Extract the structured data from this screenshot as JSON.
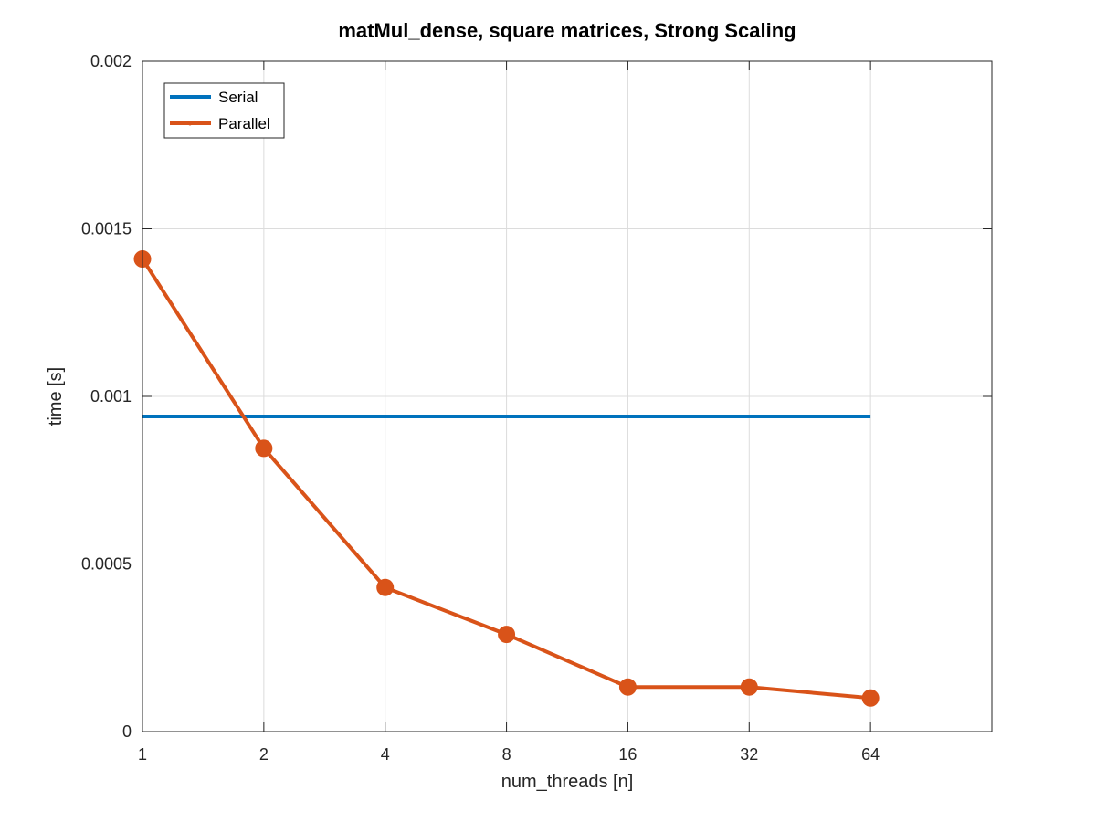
{
  "chart_data": {
    "type": "line",
    "title": "matMul_dense, square matrices, Strong Scaling",
    "xlabel": "num_threads [n]",
    "ylabel": "time [s]",
    "x_scale": "log2",
    "x": [
      1,
      2,
      4,
      8,
      16,
      32,
      64
    ],
    "xticks": [
      "1",
      "2",
      "4",
      "8",
      "16",
      "32",
      "64"
    ],
    "xlim": [
      1,
      128
    ],
    "ylim": [
      0,
      0.002
    ],
    "yticks": [
      "0",
      "0.0005",
      "0.001",
      "0.0015",
      "0.002"
    ],
    "ytick_values": [
      0,
      0.0005,
      0.001,
      0.0015,
      0.002
    ],
    "grid": true,
    "legend_position": "top-left",
    "series": [
      {
        "name": "Serial",
        "color": "#0072BD",
        "marker": "none",
        "values": [
          0.00094,
          0.00094,
          0.00094,
          0.00094,
          0.00094,
          0.00094,
          0.00094
        ]
      },
      {
        "name": "Parallel",
        "color": "#D95319",
        "marker": "circle",
        "values": [
          0.00141,
          0.000845,
          0.00043,
          0.00029,
          0.000133,
          0.000133,
          0.0001
        ]
      }
    ]
  }
}
